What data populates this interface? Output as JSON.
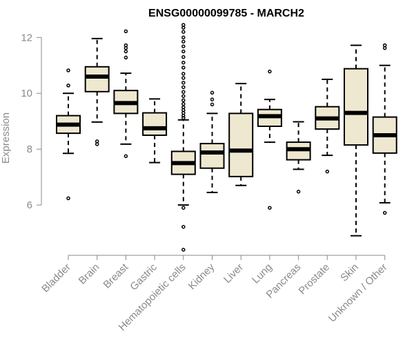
{
  "chart_data": {
    "type": "boxplot",
    "title": "ENSG00000099785 - MARCH2",
    "xlabel": "",
    "ylabel": "Expression",
    "ylim": [
      4.2,
      12.6
    ],
    "yticks": [
      6,
      8,
      10,
      12
    ],
    "grid": false,
    "box_fill": "#efe8d0",
    "categories": [
      "Bladder",
      "Brain",
      "Breast",
      "Gastric",
      "Hematopoietic cells",
      "Kidney",
      "Liver",
      "Lung",
      "Pancreas",
      "Prostate",
      "Skin",
      "Unknown / Other"
    ],
    "boxes": [
      {
        "category": "Bladder",
        "whisker_low": 7.85,
        "q1": 8.57,
        "median": 8.88,
        "q3": 9.2,
        "whisker_high": 10.0,
        "outliers": [
          10.82,
          10.28,
          6.24
        ]
      },
      {
        "category": "Brain",
        "whisker_low": 8.97,
        "q1": 10.06,
        "median": 10.6,
        "q3": 10.95,
        "whisker_high": 11.96,
        "outliers": [
          8.28,
          8.18
        ]
      },
      {
        "category": "Breast",
        "whisker_low": 8.18,
        "q1": 9.28,
        "median": 9.65,
        "q3": 10.1,
        "whisker_high": 10.72,
        "outliers": [
          12.22,
          11.72,
          11.62,
          11.5,
          11.28,
          7.75
        ]
      },
      {
        "category": "Gastric",
        "whisker_low": 7.52,
        "q1": 8.5,
        "median": 8.75,
        "q3": 9.3,
        "whisker_high": 9.8,
        "outliers": []
      },
      {
        "category": "Hematopoietic cells",
        "whisker_low": 6.0,
        "q1": 7.1,
        "median": 7.5,
        "q3": 7.92,
        "whisker_high": 9.05,
        "outliers": [
          12.45,
          12.35,
          12.2,
          12.0,
          11.85,
          11.68,
          11.5,
          11.3,
          11.1,
          10.92,
          10.7,
          10.55,
          10.38,
          10.22,
          10.05,
          9.9,
          9.75,
          9.62,
          9.5,
          9.4,
          9.3,
          9.2,
          9.12,
          5.9,
          5.22,
          4.4
        ]
      },
      {
        "category": "Kidney",
        "whisker_low": 6.45,
        "q1": 7.32,
        "median": 7.88,
        "q3": 8.2,
        "whisker_high": 9.28,
        "outliers": [
          10.02,
          9.78,
          9.6
        ]
      },
      {
        "category": "Liver",
        "whisker_low": 6.7,
        "q1": 7.02,
        "median": 7.95,
        "q3": 9.28,
        "whisker_high": 10.35,
        "outliers": []
      },
      {
        "category": "Lung",
        "whisker_low": 8.25,
        "q1": 8.82,
        "median": 9.18,
        "q3": 9.42,
        "whisker_high": 9.78,
        "outliers": [
          10.78,
          5.9
        ]
      },
      {
        "category": "Pancreas",
        "whisker_low": 7.28,
        "q1": 7.62,
        "median": 8.0,
        "q3": 8.25,
        "whisker_high": 8.98,
        "outliers": [
          6.48
        ]
      },
      {
        "category": "Prostate",
        "whisker_low": 7.78,
        "q1": 8.72,
        "median": 9.1,
        "q3": 9.52,
        "whisker_high": 10.5,
        "outliers": [
          7.2
        ]
      },
      {
        "category": "Skin",
        "whisker_low": 4.9,
        "q1": 8.15,
        "median": 9.3,
        "q3": 10.88,
        "whisker_high": 11.72,
        "outliers": []
      },
      {
        "category": "Unknown / Other",
        "whisker_low": 6.08,
        "q1": 7.86,
        "median": 8.5,
        "q3": 9.15,
        "whisker_high": 11.0,
        "outliers": [
          11.72,
          11.62,
          5.72
        ]
      }
    ]
  }
}
